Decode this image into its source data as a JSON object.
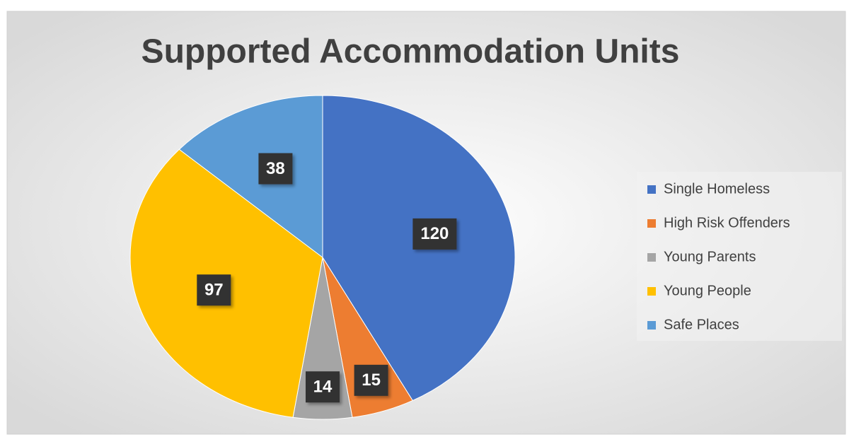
{
  "chart_data": {
    "type": "pie",
    "title": "Supported Accommodation Units",
    "categories": [
      "Single Homeless",
      "High Risk Offenders",
      "Young Parents",
      "Young People",
      "Safe Places"
    ],
    "values": [
      120,
      15,
      14,
      97,
      38
    ],
    "colors": [
      "#4472c4",
      "#ed7d31",
      "#a5a5a5",
      "#ffc000",
      "#5b9bd5"
    ],
    "legend": "right"
  }
}
